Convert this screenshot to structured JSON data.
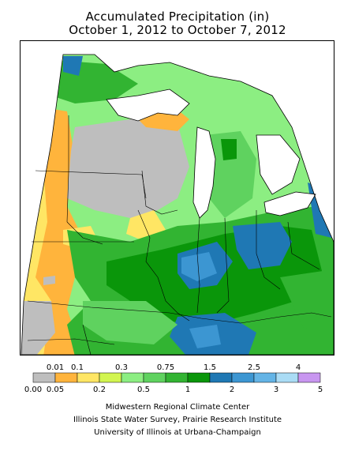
{
  "title": "Accumulated Precipitation (in)",
  "subtitle": "October 1, 2012 to October 7, 2012",
  "legend": {
    "upper_labels": [
      "0.01",
      "0.1",
      "0.3",
      "0.75",
      "1.5",
      "2.5",
      "4"
    ],
    "lower_labels": [
      "0.00",
      "0.05",
      "0.2",
      "0.5",
      "1",
      "2",
      "3",
      "5"
    ],
    "colors": [
      "#bebebe",
      "#ffb43c",
      "#ffe664",
      "#d2f550",
      "#8cee82",
      "#5fd25f",
      "#32b432",
      "#0a960a",
      "#1f78b4",
      "#3c96d2",
      "#64b4e6",
      "#aadcf5",
      "#c896f0"
    ]
  },
  "credits": [
    "Midwestern Regional Climate Center",
    "Illinois State Water Survey, Prairie Research Institute",
    "University of Illinois at Urbana-Champaign"
  ]
}
